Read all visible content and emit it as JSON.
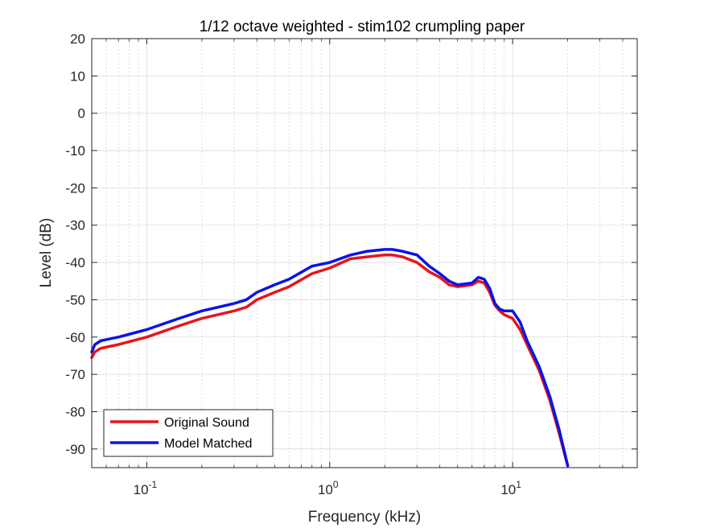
{
  "chart_data": {
    "type": "line",
    "title": "1/12 octave weighted - stim102 crumpling paper",
    "xlabel": "Frequency (kHz)",
    "ylabel": "Level (dB)",
    "xscale": "log",
    "xlim": [
      0.05,
      48
    ],
    "ylim": [
      -95,
      20
    ],
    "yticks": [
      20,
      10,
      0,
      -10,
      -20,
      -30,
      -40,
      -50,
      -60,
      -70,
      -80,
      -90
    ],
    "ytick_labels": [
      "20",
      "10",
      "0",
      "-10",
      "-20",
      "-30",
      "-40",
      "-50",
      "-60",
      "-70",
      "-80",
      "-90"
    ],
    "xticks": [
      {
        "value": 0.1,
        "base": "10",
        "exp": "-1"
      },
      {
        "value": 1,
        "base": "10",
        "exp": "0"
      },
      {
        "value": 10,
        "base": "10",
        "exp": "1"
      }
    ],
    "grid": true,
    "legend_location": "bottom-left",
    "series": [
      {
        "name": "Original Sound",
        "color": "#e8141b",
        "x": [
          0.05,
          0.052,
          0.056,
          0.07,
          0.1,
          0.15,
          0.2,
          0.3,
          0.35,
          0.4,
          0.5,
          0.6,
          0.8,
          1.0,
          1.3,
          1.6,
          2.0,
          2.2,
          2.5,
          3.0,
          3.5,
          4.0,
          4.5,
          5.0,
          6.0,
          6.5,
          7.0,
          7.5,
          8.0,
          8.5,
          9.0,
          10.0,
          11.0,
          12.0,
          14.0,
          16.0,
          18.0,
          20.0
        ],
        "y": [
          -65.5,
          -64.0,
          -63.0,
          -62.0,
          -60.0,
          -57.0,
          -55.0,
          -53.0,
          -52.0,
          -50.0,
          -48.0,
          -46.5,
          -43.0,
          -41.5,
          -39.0,
          -38.5,
          -38.0,
          -38.0,
          -38.5,
          -40.0,
          -42.5,
          -44.0,
          -46.0,
          -46.5,
          -46.0,
          -45.0,
          -45.5,
          -48.0,
          -51.5,
          -53.0,
          -54.0,
          -55.0,
          -58.0,
          -62.0,
          -69.0,
          -77.0,
          -86.0,
          -94.5
        ]
      },
      {
        "name": "Model Matched",
        "color": "#0a14e6",
        "x": [
          0.05,
          0.052,
          0.056,
          0.07,
          0.1,
          0.15,
          0.2,
          0.3,
          0.35,
          0.4,
          0.5,
          0.6,
          0.8,
          1.0,
          1.3,
          1.6,
          2.0,
          2.2,
          2.5,
          3.0,
          3.5,
          4.0,
          4.5,
          5.0,
          6.0,
          6.5,
          7.0,
          7.5,
          8.0,
          8.5,
          9.0,
          10.0,
          11.0,
          12.0,
          14.0,
          16.0,
          18.0,
          20.0
        ],
        "y": [
          -64.0,
          -62.0,
          -61.0,
          -60.0,
          -58.0,
          -55.0,
          -53.0,
          -51.0,
          -50.0,
          -48.0,
          -46.0,
          -44.5,
          -41.0,
          -40.0,
          -38.0,
          -37.0,
          -36.5,
          -36.5,
          -37.0,
          -38.0,
          -41.0,
          -43.0,
          -45.0,
          -46.0,
          -45.5,
          -44.0,
          -44.5,
          -47.0,
          -51.0,
          -52.5,
          -53.0,
          -53.0,
          -56.0,
          -61.0,
          -68.0,
          -76.0,
          -85.0,
          -94.5
        ]
      }
    ]
  }
}
